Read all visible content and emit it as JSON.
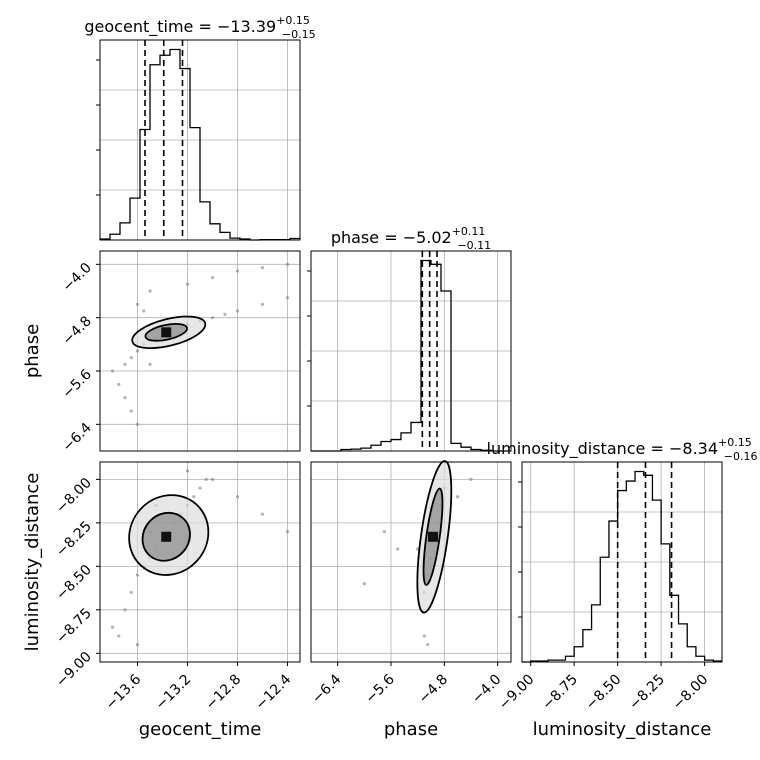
{
  "figure": {
    "type": "corner_plot",
    "colors": {
      "ink": "#000000",
      "grid": "#b0b0b0",
      "scatter": "#7f7f7f"
    }
  },
  "chart_data": {
    "type": "corner",
    "parameters": [
      {
        "name": "geocent_time",
        "median": -13.39,
        "plus": 0.15,
        "minus": 0.15,
        "title_main": "geocent_time = −13.39",
        "title_sup": "+0.15",
        "title_sub": "−0.15",
        "range": [
          -13.9,
          -12.3
        ],
        "ticks": [
          -13.6,
          -13.2,
          -12.8,
          -12.4
        ],
        "tick_labels": [
          "−13.6",
          "−13.2",
          "−12.8",
          "−12.4"
        ],
        "quantiles": [
          -13.54,
          -13.39,
          -13.24
        ],
        "histogram": {
          "bins": [
            -13.9,
            -13.82,
            -13.74,
            -13.66,
            -13.58,
            -13.5,
            -13.42,
            -13.34,
            -13.26,
            -13.18,
            -13.1,
            -13.02,
            -12.94,
            -12.86,
            -12.78,
            -12.7,
            -12.62,
            -12.54,
            -12.46,
            -12.38,
            -12.3
          ],
          "counts": [
            0.005,
            0.03,
            0.09,
            0.22,
            0.58,
            0.92,
            0.97,
            1.0,
            0.9,
            0.59,
            0.2,
            0.085,
            0.04,
            0.01,
            0.005,
            0,
            0.002,
            0.002,
            0.002,
            0.008
          ]
        }
      },
      {
        "name": "phase",
        "median": -5.02,
        "plus": 0.11,
        "minus": 0.11,
        "title_main": "phase = −5.02",
        "title_sup": "+0.11",
        "title_sub": "−0.11",
        "range": [
          -6.8,
          -3.8
        ],
        "ticks": [
          -6.4,
          -5.6,
          -4.8,
          -4.0
        ],
        "tick_labels": [
          "−6.4",
          "−5.6",
          "−4.8",
          "−4.0"
        ],
        "quantiles": [
          -5.13,
          -5.02,
          -4.91
        ],
        "histogram": {
          "bins": [
            -6.8,
            -6.65,
            -6.5,
            -6.35,
            -6.2,
            -6.05,
            -5.9,
            -5.75,
            -5.6,
            -5.45,
            -5.3,
            -5.15,
            -5.0,
            -4.85,
            -4.7,
            -4.55,
            -4.4,
            -4.25,
            -4.1,
            -3.95,
            -3.8
          ],
          "counts": [
            0,
            0,
            0,
            0.008,
            0.01,
            0.015,
            0.03,
            0.05,
            0.06,
            0.095,
            0.15,
            1.0,
            0.98,
            0.84,
            0.04,
            0.02,
            0.008,
            0.004,
            0,
            0
          ]
        }
      },
      {
        "name": "luminosity_distance",
        "median": -8.34,
        "plus": 0.15,
        "minus": 0.16,
        "title_main": "luminosity_distance = −8.34",
        "title_sup": "+0.15",
        "title_sub": "−0.16",
        "range": [
          -9.05,
          -7.9
        ],
        "ticks": [
          -9.0,
          -8.75,
          -8.5,
          -8.25,
          -8.0
        ],
        "tick_labels": [
          "−9.00",
          "−8.75",
          "−8.50",
          "−8.25",
          "−8.00"
        ],
        "y_tick_labels": [
          "−9.00",
          "−8.75",
          "−8.50",
          "−8.25",
          "−8.00"
        ],
        "quantiles": [
          -8.5,
          -8.34,
          -8.19
        ],
        "histogram": {
          "bins": [
            -9.05,
            -9.0,
            -8.95,
            -8.9,
            -8.85,
            -8.8,
            -8.75,
            -8.7,
            -8.65,
            -8.6,
            -8.55,
            -8.5,
            -8.45,
            -8.4,
            -8.35,
            -8.3,
            -8.25,
            -8.2,
            -8.15,
            -8.1,
            -8.05,
            -8.0,
            -7.95,
            -7.9
          ],
          "counts": [
            0,
            0.005,
            0.005,
            0.01,
            0.01,
            0.03,
            0.08,
            0.17,
            0.3,
            0.55,
            0.74,
            0.9,
            0.95,
            1.0,
            0.98,
            0.85,
            0.62,
            0.35,
            0.2,
            0.08,
            0.03,
            0.01,
            0.005
          ]
        }
      }
    ],
    "pairs": [
      {
        "x": "geocent_time",
        "y": "phase",
        "points": [
          [
            -13.7,
            -5.5
          ],
          [
            -13.65,
            -5.4
          ],
          [
            -13.6,
            -5.3
          ],
          [
            -13.55,
            -5.2
          ],
          [
            -13.5,
            -5.15
          ],
          [
            -13.45,
            -5.1
          ],
          [
            -13.4,
            -5.05
          ],
          [
            -13.35,
            -5.0
          ],
          [
            -13.3,
            -5.0
          ],
          [
            -13.25,
            -4.95
          ],
          [
            -13.2,
            -4.9
          ],
          [
            -13.1,
            -4.85
          ],
          [
            -13.0,
            -4.8
          ],
          [
            -12.9,
            -4.75
          ],
          [
            -12.8,
            -4.7
          ],
          [
            -12.6,
            -4.6
          ],
          [
            -12.4,
            -4.5
          ],
          [
            -13.6,
            -4.6
          ],
          [
            -13.55,
            -4.7
          ],
          [
            -13.5,
            -4.4
          ],
          [
            -13.8,
            -5.6
          ],
          [
            -13.75,
            -5.8
          ],
          [
            -13.7,
            -6.0
          ],
          [
            -13.65,
            -6.2
          ],
          [
            -13.6,
            -6.4
          ],
          [
            -13.2,
            -4.3
          ],
          [
            -13.0,
            -4.2
          ],
          [
            -12.8,
            -4.1
          ],
          [
            -12.6,
            -4.05
          ],
          [
            -12.4,
            -4.0
          ],
          [
            -13.5,
            -5.5
          ],
          [
            -13.4,
            -4.95
          ],
          [
            -13.3,
            -5.1
          ],
          [
            -13.35,
            -4.9
          ]
        ],
        "contours": [
          {
            "level": "inner",
            "center": [
              -13.37,
              -5.02
            ],
            "rx": 0.17,
            "ry": 0.11,
            "angle": -12
          },
          {
            "level": "outer",
            "center": [
              -13.35,
              -5.02
            ],
            "rx": 0.3,
            "ry": 0.2,
            "angle": -14
          }
        ]
      },
      {
        "x": "geocent_time",
        "y": "luminosity_distance",
        "points": [
          [
            -13.7,
            -8.75
          ],
          [
            -13.65,
            -8.65
          ],
          [
            -13.6,
            -8.55
          ],
          [
            -13.55,
            -8.5
          ],
          [
            -13.5,
            -8.45
          ],
          [
            -13.45,
            -8.4
          ],
          [
            -13.4,
            -8.35
          ],
          [
            -13.35,
            -8.3
          ],
          [
            -13.3,
            -8.25
          ],
          [
            -13.25,
            -8.2
          ],
          [
            -13.2,
            -8.15
          ],
          [
            -13.15,
            -8.1
          ],
          [
            -13.1,
            -8.05
          ],
          [
            -13.05,
            -8.0
          ],
          [
            -13.0,
            -8.0
          ],
          [
            -13.8,
            -8.85
          ],
          [
            -13.75,
            -8.9
          ],
          [
            -13.6,
            -8.95
          ],
          [
            -13.2,
            -7.95
          ],
          [
            -12.8,
            -8.1
          ],
          [
            -12.6,
            -8.2
          ],
          [
            -12.4,
            -8.3
          ],
          [
            -13.5,
            -8.3
          ],
          [
            -13.3,
            -8.45
          ],
          [
            -13.2,
            -8.35
          ],
          [
            -13.45,
            -8.15
          ]
        ],
        "contours": [
          {
            "level": "inner",
            "center": [
              -13.37,
              -8.33
            ],
            "rx": 0.2,
            "ry": 0.13,
            "angle": -48
          },
          {
            "level": "outer",
            "center": [
              -13.35,
              -8.32
            ],
            "rx": 0.33,
            "ry": 0.22,
            "angle": -48
          }
        ]
      },
      {
        "x": "phase",
        "y": "luminosity_distance",
        "points": [
          [
            -5.1,
            -8.65
          ],
          [
            -5.05,
            -8.55
          ],
          [
            -5.0,
            -8.45
          ],
          [
            -4.95,
            -8.35
          ],
          [
            -4.9,
            -8.25
          ],
          [
            -4.85,
            -8.15
          ],
          [
            -4.8,
            -8.05
          ],
          [
            -5.1,
            -8.9
          ],
          [
            -5.05,
            -8.95
          ],
          [
            -5.5,
            -8.4
          ],
          [
            -5.7,
            -8.3
          ],
          [
            -6.0,
            -8.6
          ],
          [
            -4.6,
            -8.1
          ],
          [
            -4.4,
            -8.0
          ],
          [
            -5.2,
            -8.4
          ],
          [
            -4.85,
            -8.3
          ],
          [
            -5.0,
            -8.2
          ]
        ],
        "contours": [
          {
            "level": "inner",
            "center": [
              -4.97,
              -8.33
            ],
            "rx": 0.1,
            "ry": 0.28,
            "angle": 8
          },
          {
            "level": "outer",
            "center": [
              -4.95,
              -8.33
            ],
            "rx": 0.2,
            "ry": 0.44,
            "angle": 8
          }
        ]
      }
    ]
  }
}
